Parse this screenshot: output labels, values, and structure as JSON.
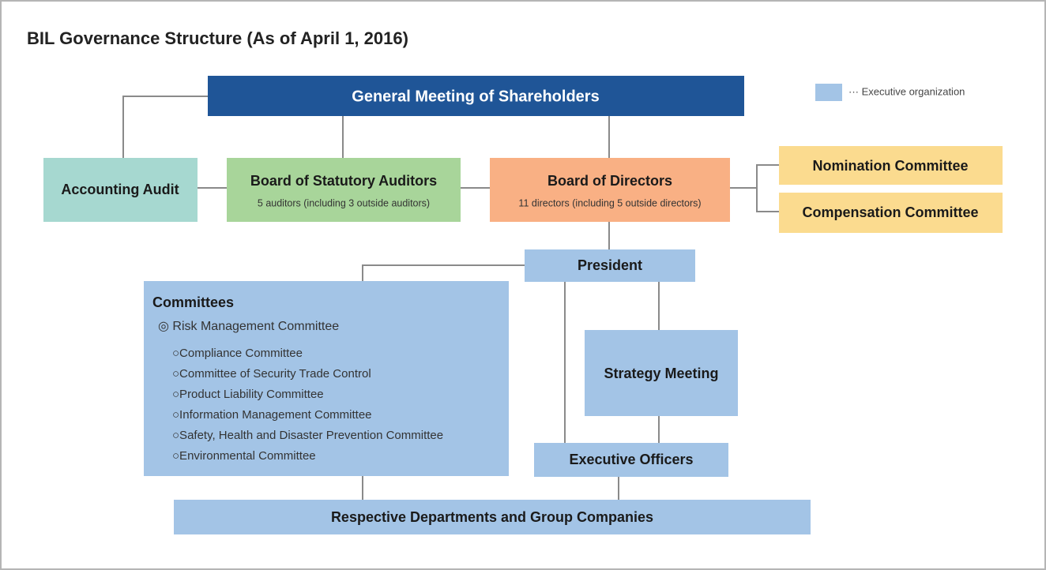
{
  "title": "BIL Governance Structure (As of April 1, 2016)",
  "legend": {
    "label": "··· Executive organization"
  },
  "nodes": [
    {
      "label": "General Meeting of Shareholders"
    },
    {
      "label": "Accounting Audit"
    },
    {
      "label": "Board of Statutory Auditors",
      "sublabel": "5 auditors (including 3 outside auditors)"
    },
    {
      "label": "Board of Directors",
      "sublabel": "11 directors (including 5 outside directors)"
    },
    {
      "label": "Nomination Committee"
    },
    {
      "label": "Compensation Committee"
    },
    {
      "label": "President"
    },
    {
      "label": "Strategy Meeting"
    },
    {
      "label": "Executive Officers"
    },
    {
      "label": "Respective Departments and Group Companies"
    }
  ],
  "committees": {
    "title": "Committees",
    "main": "◎ Risk Management Committee",
    "items": [
      "○Compliance Committee",
      "○Committee of Security Trade Control",
      "○Product Liability Committee",
      "○Information Management Committee",
      "○Safety, Health and Disaster Prevention Committee",
      "○Environmental Committee"
    ]
  }
}
